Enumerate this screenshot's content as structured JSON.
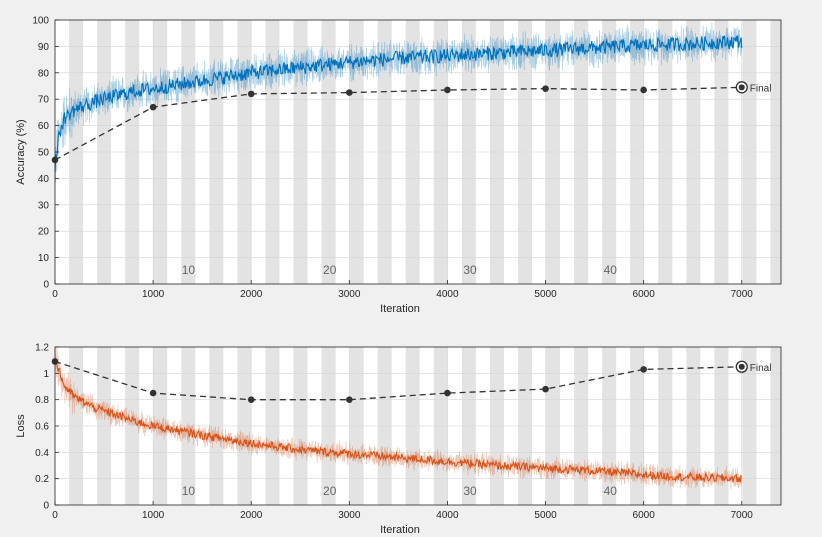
{
  "chart_data": [
    {
      "type": "line",
      "xlabel": "Iteration",
      "ylabel": "Accuracy (%)",
      "xlim": [
        0,
        7400
      ],
      "ylim": [
        0,
        100
      ],
      "xticks": [
        0,
        1000,
        2000,
        3000,
        4000,
        5000,
        6000,
        7000
      ],
      "yticks": [
        0,
        10,
        20,
        30,
        40,
        50,
        60,
        70,
        80,
        90,
        100
      ],
      "epoch_labels": [
        "10",
        "20",
        "30",
        "40"
      ],
      "epoch_label_x": [
        1360,
        2800,
        4230,
        5660
      ],
      "epoch_band_width": 143,
      "grid": true,
      "series": [
        {
          "role": "training_smoothed",
          "color": "#0072bd",
          "x": [
            0,
            50,
            100,
            200,
            400,
            600,
            800,
            1000,
            1500,
            2000,
            2500,
            3000,
            3500,
            4000,
            4500,
            5000,
            5500,
            6000,
            6500,
            7000
          ],
          "y": [
            45,
            58,
            63,
            66,
            69,
            71,
            73,
            74,
            77,
            80,
            82,
            84,
            85.5,
            86.5,
            87.5,
            88.5,
            89.5,
            90.5,
            91,
            92
          ]
        },
        {
          "role": "validation",
          "color": "#333333",
          "x": [
            0,
            1000,
            2000,
            3000,
            4000,
            5000,
            6000,
            7000
          ],
          "y": [
            47,
            67,
            72,
            72.5,
            73.5,
            74,
            73.5,
            74.5
          ]
        }
      ],
      "annotation": {
        "text": "Final",
        "x": 7000,
        "y": 74.5
      }
    },
    {
      "type": "line",
      "xlabel": "Iteration",
      "ylabel": "Loss",
      "xlim": [
        0,
        7400
      ],
      "ylim": [
        0,
        1.2
      ],
      "xticks": [
        0,
        1000,
        2000,
        3000,
        4000,
        5000,
        6000,
        7000
      ],
      "yticks": [
        0,
        0.2,
        0.4,
        0.6,
        0.8,
        1,
        1.2
      ],
      "epoch_labels": [
        "10",
        "20",
        "30",
        "40"
      ],
      "epoch_label_x": [
        1360,
        2800,
        4230,
        5660
      ],
      "epoch_band_width": 143,
      "grid": true,
      "series": [
        {
          "role": "training_smoothed",
          "color": "#d95319",
          "x": [
            0,
            50,
            100,
            200,
            400,
            600,
            800,
            1000,
            1500,
            2000,
            2500,
            3000,
            3500,
            4000,
            4500,
            5000,
            5500,
            6000,
            6500,
            7000
          ],
          "y": [
            1.1,
            1.0,
            0.9,
            0.82,
            0.74,
            0.69,
            0.64,
            0.6,
            0.53,
            0.47,
            0.42,
            0.39,
            0.36,
            0.33,
            0.3,
            0.28,
            0.26,
            0.23,
            0.21,
            0.2
          ]
        },
        {
          "role": "validation",
          "color": "#333333",
          "x": [
            0,
            1000,
            2000,
            3000,
            4000,
            5000,
            6000,
            7000
          ],
          "y": [
            1.09,
            0.85,
            0.8,
            0.8,
            0.85,
            0.88,
            1.03,
            1.05
          ]
        }
      ],
      "annotation": {
        "text": "Final",
        "x": 7000,
        "y": 1.05
      }
    }
  ]
}
